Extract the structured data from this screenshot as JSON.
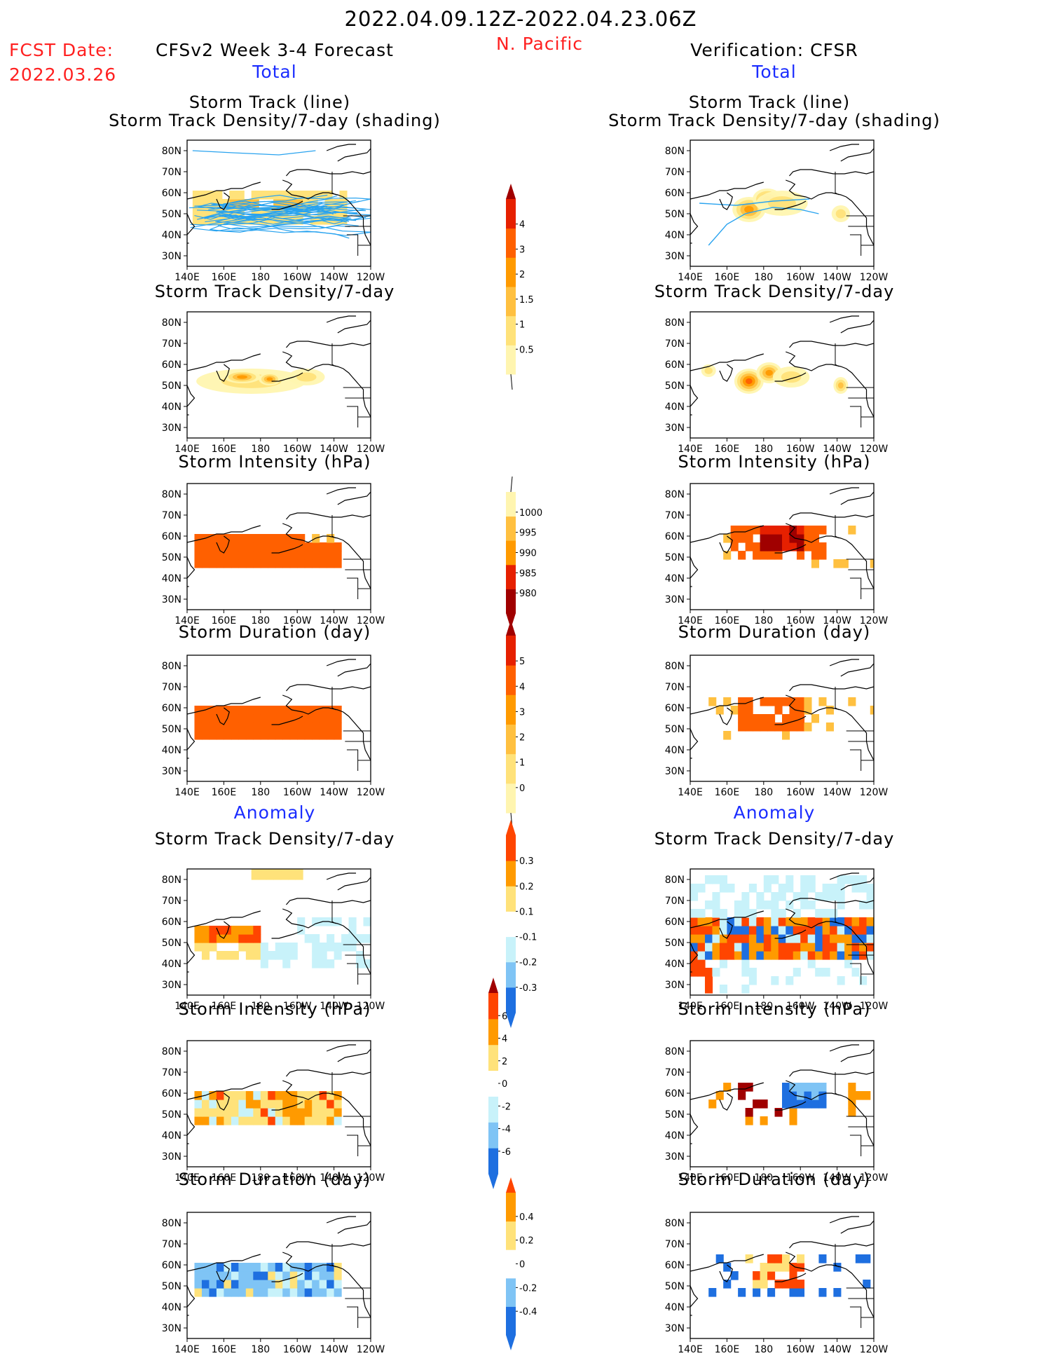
{
  "header": {
    "period": "2022.04.09.12Z-2022.04.23.06Z",
    "region": "N. Pacific",
    "fcst_label": "FCST Date:",
    "fcst_date": "2022.03.26",
    "forecast_title": "CFSv2 Week 3-4 Forecast",
    "verification_title": "Verification: CFSR",
    "total_label": "Total",
    "anomaly_label": "Anomaly"
  },
  "map_axes": {
    "lat_labels": [
      "80N",
      "70N",
      "60N",
      "50N",
      "40N",
      "30N"
    ],
    "lon_labels": [
      "140E",
      "160E",
      "180",
      "160W",
      "140W",
      "120W"
    ]
  },
  "panel_titles": {
    "track_line": "Storm Track (line)",
    "track_density_shading": "Storm Track Density/7-day (shading)",
    "track_density": "Storm Track Density/7-day",
    "intensity": "Storm Intensity (hPa)",
    "duration": "Storm Duration (day)"
  },
  "colors": {
    "shade_yellow": [
      "#fff5b0",
      "#ffe27a",
      "#ffc040",
      "#ff9a00",
      "#ff6000",
      "#e62000",
      "#a00000"
    ],
    "anom_warm": [
      "#ffe27a",
      "#ff9a00",
      "#ff4500"
    ],
    "anom_cool": [
      "#c8f2fa",
      "#7fc4f5",
      "#1e6fe0"
    ],
    "track_line": "#29a3ef"
  },
  "colorbars": [
    {
      "id": "density",
      "labels": [
        "4",
        "3",
        "2",
        "1.5",
        "1",
        "0.5"
      ]
    },
    {
      "id": "intensity",
      "labels": [
        "1000",
        "995",
        "990",
        "985",
        "980"
      ]
    },
    {
      "id": "duration",
      "labels": [
        "5",
        "4",
        "3",
        "2",
        "1",
        "0"
      ]
    },
    {
      "id": "anom_density",
      "labels": [
        "0.3",
        "0.2",
        "0.1",
        "-0.1",
        "-0.2",
        "-0.3"
      ]
    },
    {
      "id": "anom_intensity",
      "labels": [
        "6",
        "4",
        "2",
        "0",
        "-2",
        "-4",
        "-6"
      ]
    },
    {
      "id": "anom_duration",
      "labels": [
        "0.4",
        "0.2",
        "0",
        "-0.2",
        "-0.4"
      ]
    }
  ],
  "chart_data": [
    {
      "type": "heatmap",
      "id": "fcst-total-track",
      "title": "Storm Track (line) / Storm Track Density/7-day (shading)",
      "xlim": [
        140,
        240
      ],
      "ylim": [
        25,
        85
      ]
    },
    {
      "type": "heatmap",
      "id": "cfsr-total-track",
      "title": "Storm Track (line) / Storm Track Density/7-day (shading)",
      "xlim": [
        140,
        240
      ],
      "ylim": [
        25,
        85
      ]
    },
    {
      "type": "heatmap",
      "id": "fcst-total-density",
      "title": "Storm Track Density/7-day",
      "xlim": [
        140,
        240
      ],
      "ylim": [
        25,
        85
      ]
    },
    {
      "type": "heatmap",
      "id": "cfsr-total-density",
      "title": "Storm Track Density/7-day",
      "xlim": [
        140,
        240
      ],
      "ylim": [
        25,
        85
      ]
    },
    {
      "type": "heatmap",
      "id": "fcst-total-intensity",
      "title": "Storm Intensity (hPa)",
      "xlim": [
        140,
        240
      ],
      "ylim": [
        25,
        85
      ]
    },
    {
      "type": "heatmap",
      "id": "cfsr-total-intensity",
      "title": "Storm Intensity (hPa)",
      "xlim": [
        140,
        240
      ],
      "ylim": [
        25,
        85
      ]
    },
    {
      "type": "heatmap",
      "id": "fcst-total-duration",
      "title": "Storm Duration (day)",
      "xlim": [
        140,
        240
      ],
      "ylim": [
        25,
        85
      ]
    },
    {
      "type": "heatmap",
      "id": "cfsr-total-duration",
      "title": "Storm Duration (day)",
      "xlim": [
        140,
        240
      ],
      "ylim": [
        25,
        85
      ]
    },
    {
      "type": "heatmap",
      "id": "fcst-anom-density",
      "title": "Storm Track Density/7-day",
      "xlim": [
        140,
        240
      ],
      "ylim": [
        25,
        85
      ]
    },
    {
      "type": "heatmap",
      "id": "cfsr-anom-density",
      "title": "Storm Track Density/7-day",
      "xlim": [
        140,
        240
      ],
      "ylim": [
        25,
        85
      ]
    },
    {
      "type": "heatmap",
      "id": "fcst-anom-intensity",
      "title": "Storm Intensity (hPa)",
      "xlim": [
        140,
        240
      ],
      "ylim": [
        25,
        85
      ]
    },
    {
      "type": "heatmap",
      "id": "cfsr-anom-intensity",
      "title": "Storm Intensity (hPa)",
      "xlim": [
        140,
        240
      ],
      "ylim": [
        25,
        85
      ]
    },
    {
      "type": "heatmap",
      "id": "fcst-anom-duration",
      "title": "Storm Duration (day)",
      "xlim": [
        140,
        240
      ],
      "ylim": [
        25,
        85
      ]
    },
    {
      "type": "heatmap",
      "id": "cfsr-anom-duration",
      "title": "Storm Duration (day)",
      "xlim": [
        140,
        240
      ],
      "ylim": [
        25,
        85
      ]
    }
  ]
}
